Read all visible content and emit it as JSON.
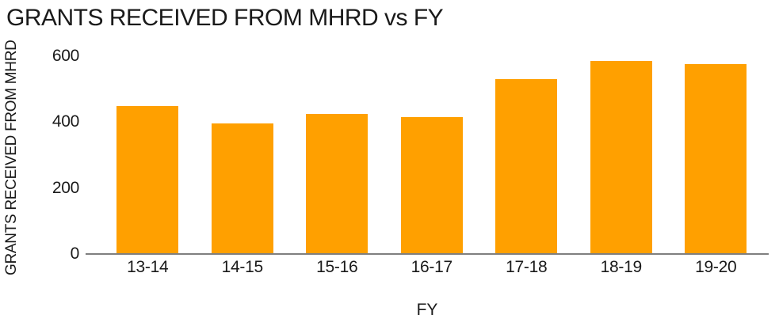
{
  "chart_data": {
    "type": "bar",
    "title": "GRANTS RECEIVED FROM MHRD vs FY",
    "xlabel": "FY",
    "ylabel": "GRANTS RECEIVED FROM MHRD",
    "categories": [
      "13-14",
      "14-15",
      "15-16",
      "16-17",
      "17-18",
      "18-19",
      "19-20"
    ],
    "values": [
      450,
      395,
      425,
      415,
      530,
      585,
      575
    ],
    "ylim": [
      0,
      600
    ],
    "yticks": [
      0,
      200,
      400,
      600
    ],
    "grid": false,
    "legend": false,
    "colors": {
      "bar": "#FFA000",
      "axis": "#7f7f7f",
      "text": "#1a1a1a"
    }
  }
}
